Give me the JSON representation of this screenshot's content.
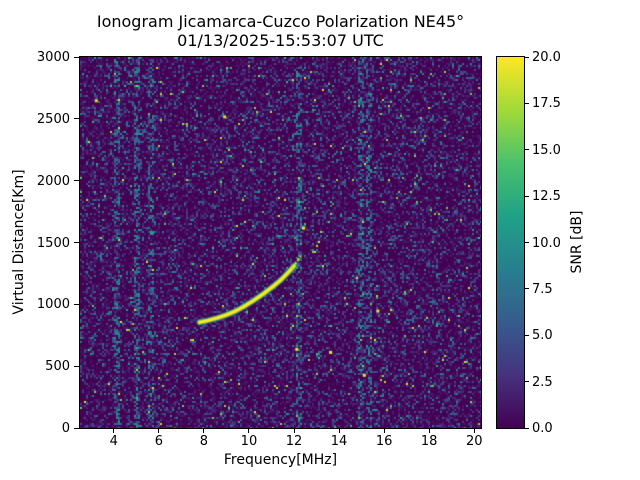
{
  "chart_data": {
    "type": "heatmap",
    "title": "Ionogram Jicamarca-Cuzco Polarization NE45°",
    "subtitle": "01/13/2025-15:53:07 UTC",
    "xlabel": "Frequency[MHz]",
    "ylabel": "Virtual Distance[Km]",
    "xlim": [
      2.5,
      20.3
    ],
    "ylim": [
      0,
      3000
    ],
    "x_ticks": [
      "4",
      "6",
      "8",
      "10",
      "12",
      "14",
      "16",
      "18",
      "20"
    ],
    "y_ticks": [
      "0",
      "500",
      "1000",
      "1500",
      "2000",
      "2500",
      "3000"
    ],
    "grid": false,
    "colorbar": {
      "label": "SNR [dB]",
      "ticks": [
        "0.0",
        "2.5",
        "5.0",
        "7.5",
        "10.0",
        "12.5",
        "15.0",
        "17.5",
        "20.0"
      ],
      "vmin": 0,
      "vmax": 20,
      "colormap": "viridis"
    },
    "viridis_stops": [
      "#440154",
      "#46327e",
      "#365c8d",
      "#277f8e",
      "#1fa187",
      "#4ac16d",
      "#a0da39",
      "#fde725"
    ],
    "echo_trace": {
      "description": "bright ionospheric echo trace, SNR near 20 dB, curving upward",
      "snr_db": 20,
      "points": [
        [
          7.8,
          855
        ],
        [
          8.2,
          870
        ],
        [
          8.6,
          890
        ],
        [
          9.0,
          915
        ],
        [
          9.4,
          945
        ],
        [
          9.8,
          985
        ],
        [
          10.2,
          1030
        ],
        [
          10.6,
          1080
        ],
        [
          11.0,
          1135
        ],
        [
          11.4,
          1195
        ],
        [
          11.7,
          1250
        ],
        [
          12.0,
          1310
        ]
      ]
    },
    "trace_tip": {
      "description": "sparse dotted upper tip of the trace",
      "points": [
        [
          11.9,
          1290
        ],
        [
          12.1,
          1340
        ],
        [
          12.3,
          1390
        ]
      ]
    },
    "rfi_bands": [
      4.1,
      5.0,
      5.6,
      12.2,
      14.9,
      15.3
    ],
    "hot_spots": [
      [
        12.4,
        1620
      ],
      [
        12.1,
        640
      ],
      [
        15.1,
        430
      ],
      [
        15.7,
        950
      ],
      [
        3.2,
        2650
      ],
      [
        13.6,
        615
      ],
      [
        8.9,
        2520
      ]
    ],
    "noise": {
      "description": "speckled background noise near 0-5 dB over dark 0 dB field",
      "typical_snr_db": [
        0,
        5
      ]
    }
  }
}
